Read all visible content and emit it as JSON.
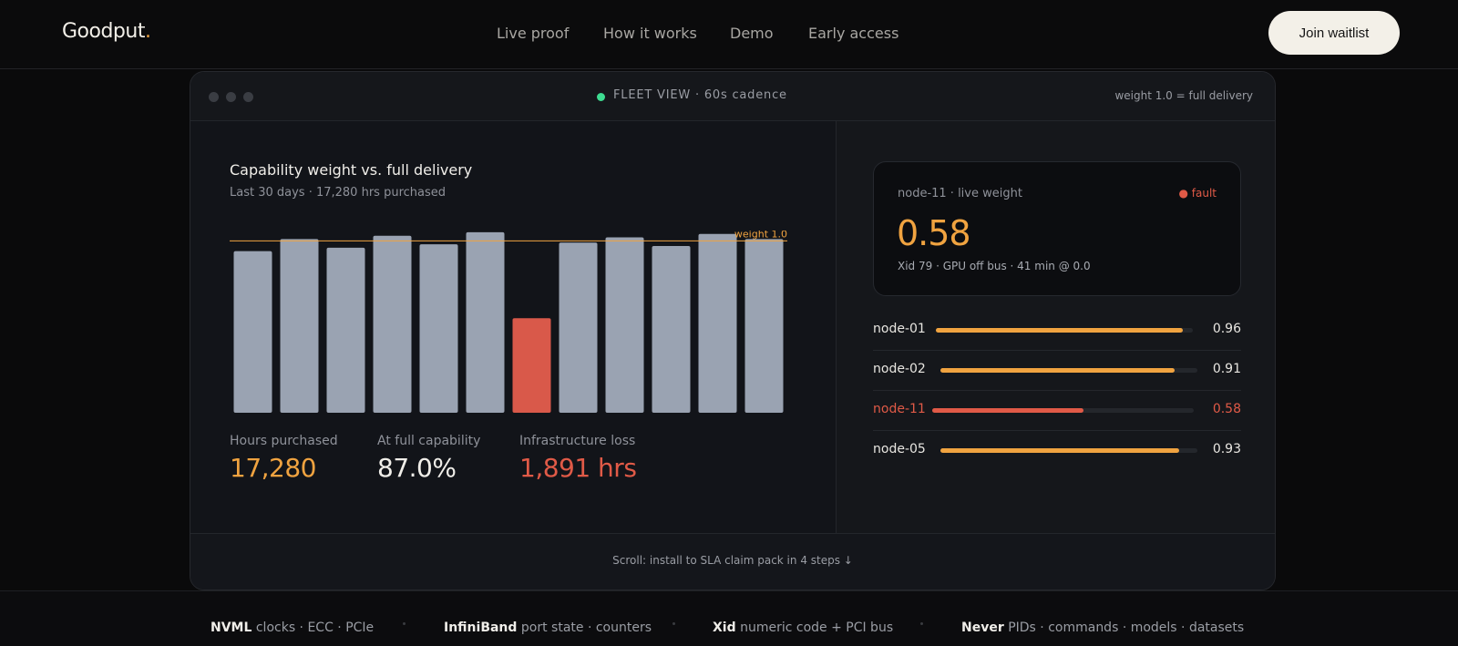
{
  "nav": {
    "brand": "Goodput",
    "brand_dot": ".",
    "links": [
      "Live proof",
      "How it works",
      "Demo",
      "Early access"
    ],
    "cta": "Join waitlist"
  },
  "panel": {
    "titlebar": {
      "title": "FLEET VIEW · 60s cadence",
      "right": "weight 1.0 = full delivery"
    },
    "chart_title": "Capability weight vs. full delivery",
    "chart_subtitle": "Last 30 days · 17,280 hrs purchased",
    "stats": [
      {
        "label": "Hours purchased",
        "value": "17,280",
        "color": "#f0a340"
      },
      {
        "label": "At full capability",
        "value": "87.0%",
        "color": "#f0eee9"
      },
      {
        "label": "Infrastructure loss",
        "value": "1,891 hrs",
        "color": "#e05a47"
      }
    ],
    "live_card": {
      "label": "node-11 · live weight",
      "status": "● fault",
      "value": "0.58",
      "detail": "Xid 79 · GPU off bus · 41 min @ 0.0"
    },
    "nodes": [
      {
        "name": "node-01",
        "value": "0.96",
        "weight": 0.96,
        "fault": false
      },
      {
        "name": "node-02",
        "value": "0.91",
        "weight": 0.91,
        "fault": false
      },
      {
        "name": "node-11",
        "value": "0.58",
        "weight": 0.58,
        "fault": true
      },
      {
        "name": "node-05",
        "value": "0.93",
        "weight": 0.93,
        "fault": false
      }
    ],
    "scroll_hint": "Scroll: install to SLA claim pack in 4 steps ↓"
  },
  "chart_data": {
    "type": "bar",
    "title": "Capability weight vs. full delivery",
    "subtitle": "Last 30 days · 17,280 hrs purchased",
    "values": [
      0.94,
      1.01,
      0.96,
      1.03,
      0.98,
      1.05,
      0.55,
      0.99,
      1.02,
      0.97,
      1.04,
      1.01
    ],
    "highlight_index": 6,
    "reference_line": {
      "value": 1.0,
      "label": "weight 1.0"
    },
    "ylim": [
      0,
      1.06
    ],
    "colors": {
      "bar": "#9aa3b2",
      "highlight": "#d9594a",
      "reference": "#f0a340"
    }
  },
  "bottom": {
    "items": [
      {
        "bold": "NVML",
        "rest": " clocks · ECC · PCIe"
      },
      {
        "bold": "InfiniBand",
        "rest": " port state · counters"
      },
      {
        "bold": "Xid",
        "rest": " numeric code + PCI bus"
      },
      {
        "bold": "Never",
        "rest": " PIDs · commands · models · datasets"
      }
    ]
  },
  "colors": {
    "accent": "#f0a340",
    "fault": "#e05a47",
    "live": "#3ddc91",
    "background": "#0a0a0b"
  }
}
